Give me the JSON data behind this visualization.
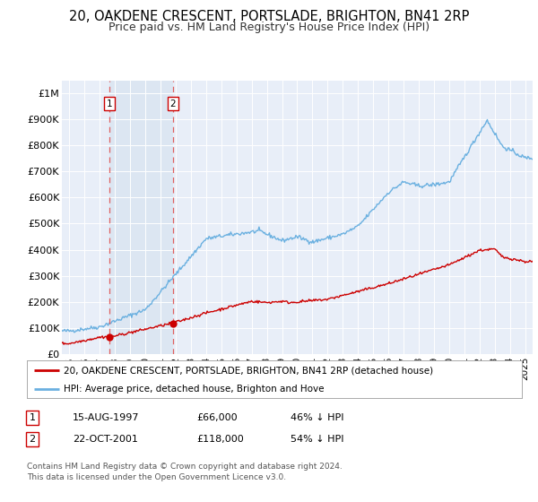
{
  "title": "20, OAKDENE CRESCENT, PORTSLADE, BRIGHTON, BN41 2RP",
  "subtitle": "Price paid vs. HM Land Registry's House Price Index (HPI)",
  "title_fontsize": 10.5,
  "subtitle_fontsize": 9,
  "ylim": [
    0,
    1050000
  ],
  "yticks": [
    0,
    100000,
    200000,
    300000,
    400000,
    500000,
    600000,
    700000,
    800000,
    900000,
    1000000
  ],
  "ytick_labels": [
    "£0",
    "£100K",
    "£200K",
    "£300K",
    "£400K",
    "£500K",
    "£600K",
    "£700K",
    "£800K",
    "£900K",
    "£1M"
  ],
  "plot_bg_color": "#e8eef8",
  "fig_bg_color": "#ffffff",
  "hpi_color": "#6ab0e0",
  "price_color": "#cc0000",
  "highlight_color": "#d8e4f0",
  "sale1_year": 1997.62,
  "sale1_price": 66000,
  "sale1_label": "1",
  "sale2_year": 2001.81,
  "sale2_price": 118000,
  "sale2_label": "2",
  "legend_line1": "20, OAKDENE CRESCENT, PORTSLADE, BRIGHTON, BN41 2RP (detached house)",
  "legend_line2": "HPI: Average price, detached house, Brighton and Hove",
  "table_row1": [
    "1",
    "15-AUG-1997",
    "£66,000",
    "46% ↓ HPI"
  ],
  "table_row2": [
    "2",
    "22-OCT-2001",
    "£118,000",
    "54% ↓ HPI"
  ],
  "footer": "Contains HM Land Registry data © Crown copyright and database right 2024.\nThis data is licensed under the Open Government Licence v3.0.",
  "xmin": 1994.5,
  "xmax": 2025.5
}
